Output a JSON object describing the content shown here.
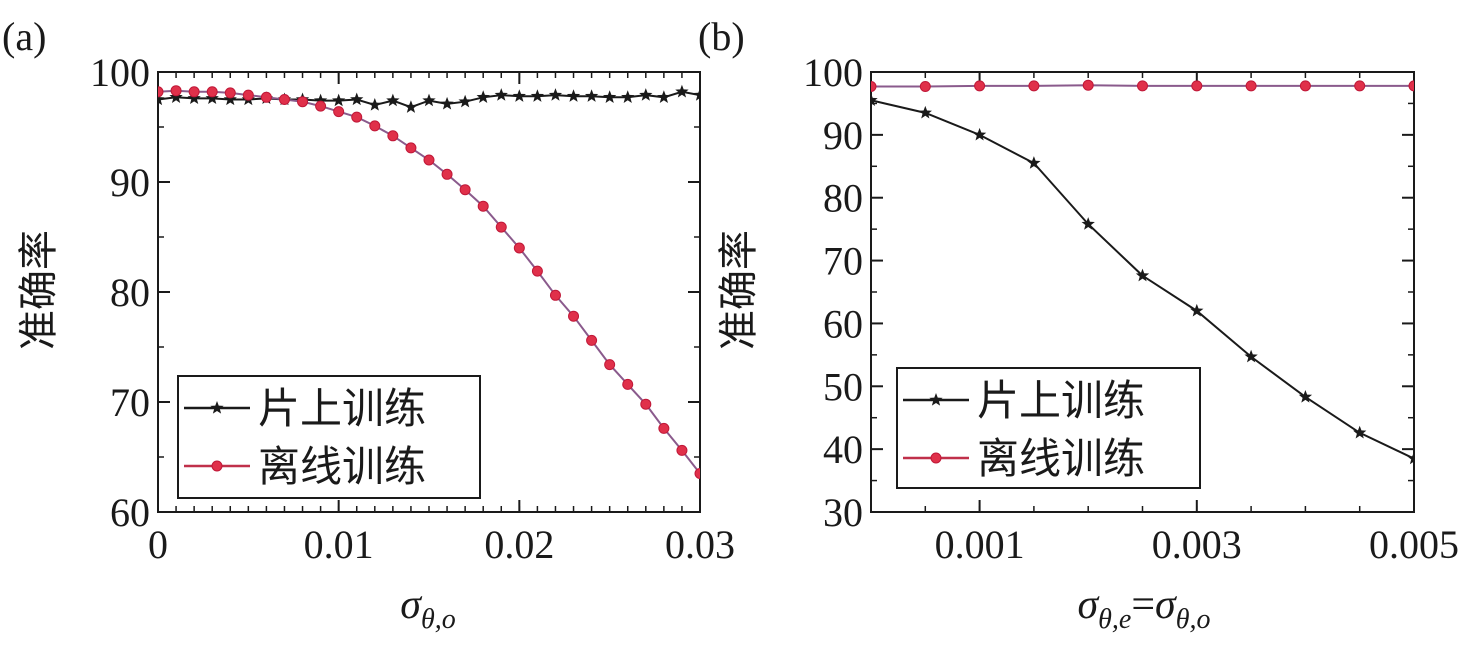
{
  "chart_data": [
    {
      "panel": "(a)",
      "type": "line",
      "ylabel": "准确率",
      "xlabel": {
        "base": "σ",
        "sub": "θ,o"
      },
      "xlim": [
        0,
        0.03
      ],
      "ylim": [
        60,
        100
      ],
      "xticks": [
        0,
        0.01,
        0.02,
        0.03
      ],
      "xtick_labels": [
        "0",
        "0.01",
        "0.02",
        "0.03"
      ],
      "yticks": [
        60,
        70,
        80,
        90,
        100
      ],
      "ytick_labels": [
        "60",
        "70",
        "80",
        "90",
        "100"
      ],
      "legend_position": "bottom-left",
      "series": [
        {
          "name": "片上训练",
          "color": "#1a1a1a",
          "marker": "star",
          "x": [
            0,
            0.001,
            0.002,
            0.003,
            0.004,
            0.005,
            0.006,
            0.007,
            0.008,
            0.009,
            0.01,
            0.011,
            0.012,
            0.013,
            0.014,
            0.015,
            0.016,
            0.017,
            0.018,
            0.019,
            0.02,
            0.021,
            0.022,
            0.023,
            0.024,
            0.025,
            0.026,
            0.027,
            0.028,
            0.029,
            0.03
          ],
          "y": [
            97.5,
            97.7,
            97.6,
            97.6,
            97.5,
            97.5,
            97.6,
            97.5,
            97.5,
            97.4,
            97.4,
            97.5,
            97.0,
            97.4,
            96.8,
            97.4,
            97.1,
            97.3,
            97.7,
            97.9,
            97.8,
            97.8,
            97.9,
            97.8,
            97.8,
            97.7,
            97.7,
            97.9,
            97.7,
            98.2,
            97.9
          ]
        },
        {
          "name": "离线训练",
          "color": "#e0304a",
          "marker": "circle",
          "x": [
            0,
            0.001,
            0.002,
            0.003,
            0.004,
            0.005,
            0.006,
            0.007,
            0.008,
            0.009,
            0.01,
            0.011,
            0.012,
            0.013,
            0.014,
            0.015,
            0.016,
            0.017,
            0.018,
            0.019,
            0.02,
            0.021,
            0.022,
            0.023,
            0.024,
            0.025,
            0.026,
            0.027,
            0.028,
            0.029,
            0.03
          ],
          "y": [
            98.2,
            98.3,
            98.2,
            98.2,
            98.1,
            97.9,
            97.7,
            97.5,
            97.3,
            96.9,
            96.4,
            95.9,
            95.1,
            94.2,
            93.1,
            92.0,
            90.7,
            89.3,
            87.8,
            85.9,
            84.0,
            81.9,
            79.7,
            77.8,
            75.6,
            73.4,
            71.6,
            69.8,
            67.6,
            65.6,
            63.5
          ]
        }
      ]
    },
    {
      "panel": "(b)",
      "type": "line",
      "ylabel": "准确率",
      "xlabel": {
        "left_base": "σ",
        "left_sub": "θ,e",
        "eq": "=",
        "right_base": "σ",
        "right_sub": "θ,o"
      },
      "xlim": [
        0,
        0.005
      ],
      "ylim": [
        30,
        100
      ],
      "xticks": [
        0.001,
        0.003,
        0.005
      ],
      "xtick_labels": [
        "0.001",
        "0.003",
        "0.005"
      ],
      "yticks": [
        30,
        40,
        50,
        60,
        70,
        80,
        90,
        100
      ],
      "ytick_labels": [
        "30",
        "40",
        "50",
        "60",
        "70",
        "80",
        "90",
        "100"
      ],
      "legend_position": "bottom-left",
      "series": [
        {
          "name": "片上训练",
          "color": "#1a1a1a",
          "marker": "star",
          "x": [
            0,
            0.0005,
            0.001,
            0.0015,
            0.002,
            0.0025,
            0.003,
            0.0035,
            0.004,
            0.0045,
            0.005
          ],
          "y": [
            95.5,
            93.5,
            90.0,
            85.5,
            75.8,
            67.6,
            62.0,
            54.7,
            48.3,
            42.6,
            38.5
          ]
        },
        {
          "name": "离线训练",
          "color": "#e0304a",
          "marker": "circle",
          "x": [
            0,
            0.0005,
            0.001,
            0.0015,
            0.002,
            0.0025,
            0.003,
            0.0035,
            0.004,
            0.0045,
            0.005
          ],
          "y": [
            97.7,
            97.7,
            97.8,
            97.8,
            97.9,
            97.8,
            97.8,
            97.8,
            97.8,
            97.8,
            97.8
          ]
        }
      ]
    }
  ]
}
